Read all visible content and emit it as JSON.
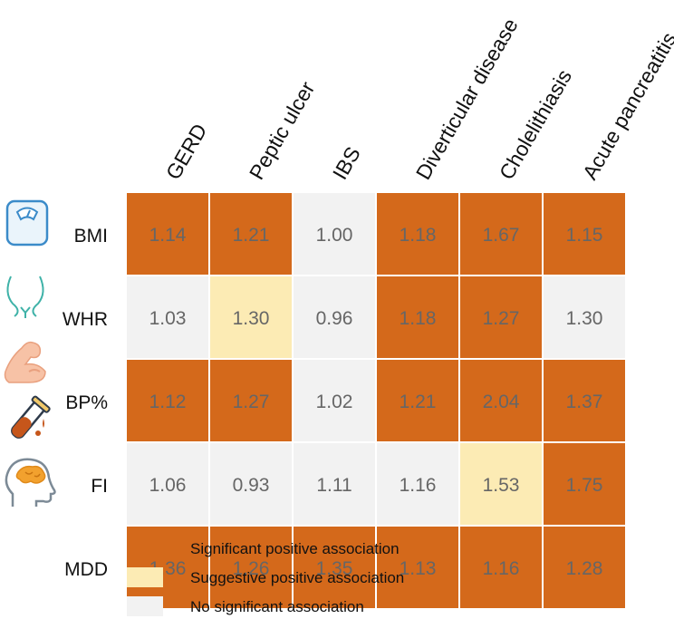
{
  "chart_data": {
    "type": "heatmap",
    "columns": [
      "GERD",
      "Peptic ulcer",
      "IBS",
      "Diverticular disease",
      "Cholelithiasis",
      "Acute pancreatitis"
    ],
    "rows": [
      {
        "label": "BMI",
        "icon": "scale-icon"
      },
      {
        "label": "WHR",
        "icon": "waist-icon"
      },
      {
        "label": "BP%",
        "icon": "muscle-arm-icon"
      },
      {
        "label": "FI",
        "icon": "test-tube-icon"
      },
      {
        "label": "MDD",
        "icon": "brain-head-icon"
      }
    ],
    "values": [
      [
        "1.14",
        "1.21",
        "1.00",
        "1.18",
        "1.67",
        "1.15"
      ],
      [
        "1.03",
        "1.30",
        "0.96",
        "1.18",
        "1.27",
        "1.30"
      ],
      [
        "1.12",
        "1.27",
        "1.02",
        "1.21",
        "2.04",
        "1.37"
      ],
      [
        "1.06",
        "0.93",
        "1.11",
        "1.16",
        "1.53",
        "1.75"
      ],
      [
        "1.36",
        "1.26",
        "1.35",
        "1.13",
        "1.16",
        "1.28"
      ]
    ],
    "significance": [
      [
        "significant",
        "significant",
        "none",
        "significant",
        "significant",
        "significant"
      ],
      [
        "none",
        "suggestive",
        "none",
        "significant",
        "significant",
        "none"
      ],
      [
        "significant",
        "significant",
        "none",
        "significant",
        "significant",
        "significant"
      ],
      [
        "none",
        "none",
        "none",
        "none",
        "suggestive",
        "significant"
      ],
      [
        "significant",
        "significant",
        "significant",
        "significant",
        "significant",
        "significant"
      ]
    ],
    "legend": [
      {
        "key": "significant",
        "label": "Significant positive association",
        "color": "#D4691B"
      },
      {
        "key": "suggestive",
        "label": "Suggestive positive association",
        "color": "#FCEBB4"
      },
      {
        "key": "none",
        "label": "No significant association",
        "color": "#F2F2F2"
      }
    ]
  }
}
